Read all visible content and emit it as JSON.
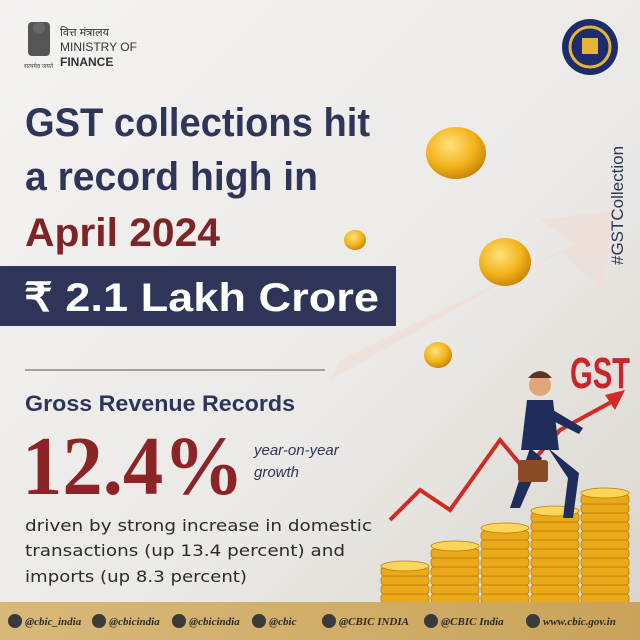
{
  "header": {
    "ministry_hindi": "वित्त मंत्रालय",
    "ministry_line1": "MINISTRY OF",
    "ministry_line2": "FINANCE",
    "motto": "सत्यमेव जयते"
  },
  "title": {
    "lines": [
      "GST collections hit",
      "a record high in",
      "April 2024"
    ]
  },
  "banner": "₹ 2.1 Lakh Crore",
  "hashtag": "#GSTCollection",
  "illustration_label": "GST",
  "subheading": "Gross Revenue Records",
  "growth": {
    "value": "12.4%",
    "label_lines": [
      "year-on-year",
      "growth"
    ]
  },
  "description_lines": [
    "driven by strong increase in domestic",
    "transactions (up 13.4 percent) and",
    "imports (up 8.3 percent)"
  ],
  "footer": [
    "@cbic_india",
    "@cbicindia",
    "@cbicindia",
    "@cbic",
    "@CBIC INDIA",
    "@CBIC India",
    "www.cbic.gov.in"
  ]
}
